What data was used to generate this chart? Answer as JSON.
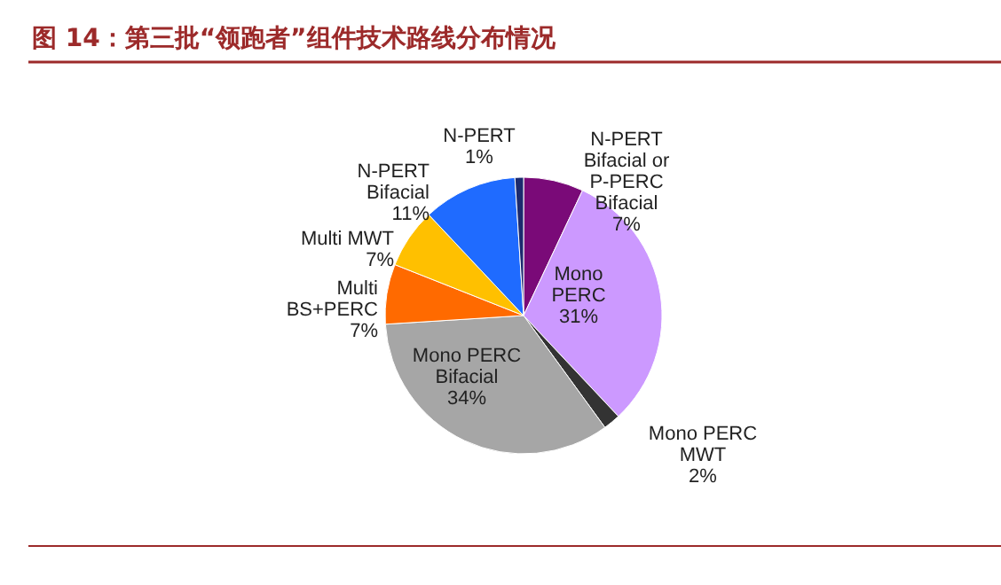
{
  "chart_data": {
    "type": "pie",
    "title": "图 14：第三批“领跑者”组件技术路线分布情况",
    "categories": [
      "N-PERT\nBifacial or\nP-PERC\nBifacial",
      "Mono\nPERC",
      "Mono PERC\nMWT",
      "Mono PERC\nBifacial",
      "Multi\nBS+PERC",
      "Multi MWT",
      "N-PERT\nBifacial",
      "N-PERT"
    ],
    "values": [
      7,
      31,
      2,
      34,
      7,
      7,
      11,
      1
    ],
    "value_labels": [
      "7%",
      "31%",
      "2%",
      "34%",
      "7%",
      "7%",
      "11%",
      "1%"
    ],
    "colors": [
      "#7a0a78",
      "#cc99ff",
      "#333333",
      "#a6a6a6",
      "#ff6a00",
      "#ffc000",
      "#1f6bff",
      "#1c2a6e"
    ]
  }
}
